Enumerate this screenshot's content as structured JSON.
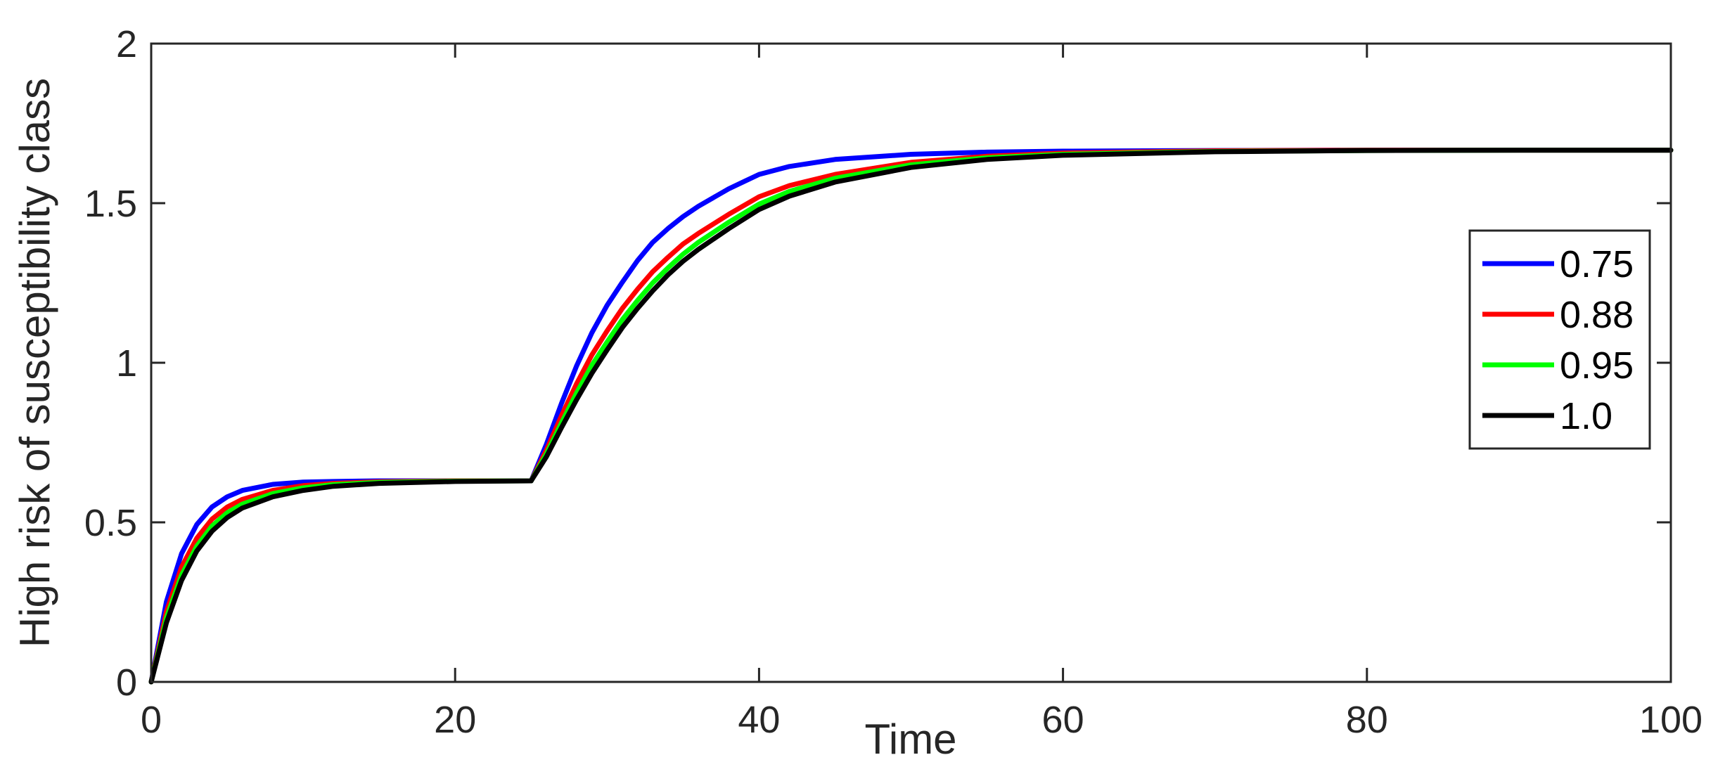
{
  "chart_data": {
    "type": "line",
    "title": "",
    "xlabel": "Time",
    "ylabel": "High risk of susceptibility class",
    "xlim": [
      0,
      100
    ],
    "ylim": [
      0,
      2
    ],
    "xticks": [
      0,
      20,
      40,
      60,
      80,
      100
    ],
    "xtick_labels": [
      "0",
      "20",
      "40",
      "60",
      "80",
      "100"
    ],
    "yticks": [
      0,
      0.5,
      1,
      1.5,
      2
    ],
    "ytick_labels": [
      "0",
      "0.5",
      "1",
      "1.5",
      "2"
    ],
    "grid": false,
    "legend_position": "right",
    "series": [
      {
        "name": "0.75",
        "color": "#0000ff",
        "x": [
          0,
          1,
          2,
          3,
          4,
          5,
          6,
          8,
          10,
          12,
          15,
          20,
          25,
          26,
          27,
          28,
          29,
          30,
          31,
          32,
          33,
          34,
          35,
          36,
          38,
          40,
          42,
          45,
          50,
          55,
          60,
          70,
          80,
          90,
          100
        ],
        "y": [
          0,
          0.251,
          0.402,
          0.493,
          0.548,
          0.58,
          0.6,
          0.619,
          0.626,
          0.628,
          0.63,
          0.63,
          0.63,
          0.744,
          0.873,
          0.991,
          1.094,
          1.18,
          1.252,
          1.32,
          1.377,
          1.42,
          1.458,
          1.49,
          1.545,
          1.59,
          1.615,
          1.637,
          1.653,
          1.66,
          1.663,
          1.665,
          1.666,
          1.666,
          1.666
        ]
      },
      {
        "name": "0.88",
        "color": "#ff0000",
        "x": [
          0,
          1,
          2,
          3,
          4,
          5,
          6,
          8,
          10,
          12,
          15,
          20,
          25,
          26,
          27,
          28,
          29,
          30,
          31,
          32,
          33,
          34,
          35,
          36,
          38,
          40,
          42,
          45,
          50,
          55,
          60,
          70,
          80,
          90,
          100
        ],
        "y": [
          0,
          0.22,
          0.36,
          0.45,
          0.51,
          0.548,
          0.572,
          0.6,
          0.615,
          0.622,
          0.627,
          0.63,
          0.63,
          0.726,
          0.834,
          0.935,
          1.025,
          1.1,
          1.17,
          1.23,
          1.285,
          1.33,
          1.372,
          1.405,
          1.465,
          1.52,
          1.555,
          1.59,
          1.628,
          1.647,
          1.657,
          1.664,
          1.666,
          1.666,
          1.666
        ]
      },
      {
        "name": "0.95",
        "color": "#00ff00",
        "x": [
          0,
          1,
          2,
          3,
          4,
          5,
          6,
          8,
          10,
          12,
          15,
          20,
          25,
          26,
          27,
          28,
          29,
          30,
          31,
          32,
          33,
          34,
          35,
          36,
          38,
          40,
          42,
          45,
          50,
          55,
          60,
          70,
          80,
          90,
          100
        ],
        "y": [
          0,
          0.2,
          0.335,
          0.425,
          0.488,
          0.53,
          0.557,
          0.59,
          0.608,
          0.618,
          0.625,
          0.629,
          0.63,
          0.714,
          0.812,
          0.906,
          0.992,
          1.065,
          1.135,
          1.195,
          1.25,
          1.297,
          1.34,
          1.377,
          1.44,
          1.497,
          1.537,
          1.578,
          1.62,
          1.642,
          1.653,
          1.662,
          1.665,
          1.666,
          1.666
        ]
      },
      {
        "name": "1.0",
        "color": "#000000",
        "x": [
          0,
          1,
          2,
          3,
          4,
          5,
          6,
          8,
          10,
          12,
          15,
          20,
          25,
          26,
          27,
          28,
          29,
          30,
          31,
          32,
          33,
          34,
          35,
          36,
          38,
          40,
          42,
          45,
          50,
          55,
          60,
          70,
          80,
          90,
          100
        ],
        "y": [
          0,
          0.185,
          0.318,
          0.41,
          0.472,
          0.515,
          0.545,
          0.58,
          0.6,
          0.613,
          0.622,
          0.628,
          0.63,
          0.705,
          0.797,
          0.885,
          0.967,
          1.04,
          1.11,
          1.17,
          1.225,
          1.275,
          1.318,
          1.355,
          1.42,
          1.48,
          1.522,
          1.566,
          1.612,
          1.637,
          1.65,
          1.661,
          1.665,
          1.666,
          1.666
        ]
      }
    ]
  }
}
